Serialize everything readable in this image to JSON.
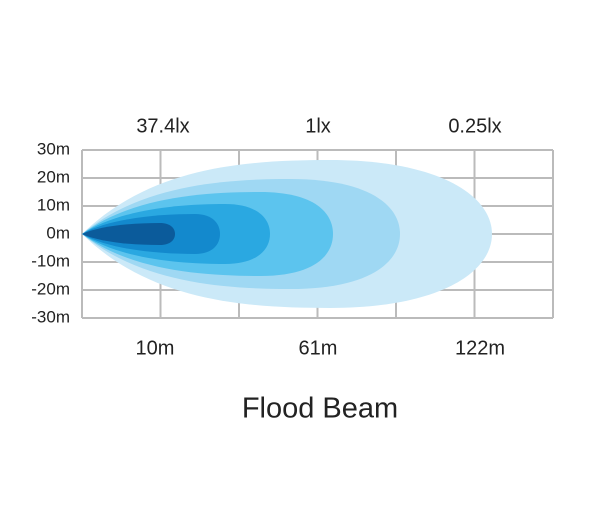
{
  "title": "Flood Beam",
  "illuminance_labels": [
    "37.4lx",
    "1lx",
    "0.25lx"
  ],
  "distance_labels": [
    "10m",
    "61m",
    "122m"
  ],
  "width_labels": [
    "30m",
    "20m",
    "10m",
    "0m",
    "-10m",
    "-20m",
    "-30m"
  ]
}
